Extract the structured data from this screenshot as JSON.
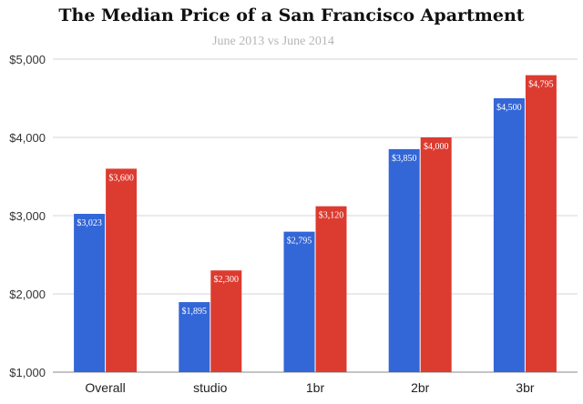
{
  "chart_data": {
    "type": "bar",
    "title": "The Median Price of a San Francisco Apartment",
    "subtitle": "June 2013 vs June 2014",
    "xlabel": "",
    "ylabel": "",
    "categories": [
      "Overall",
      "studio",
      "1br",
      "2br",
      "3br"
    ],
    "series": [
      {
        "color": "#3366d6",
        "values": [
          3023,
          1895,
          2795,
          3850,
          4500
        ],
        "labels": [
          "$3,023",
          "$1,895",
          "$2,795",
          "$3,850",
          "$4,500"
        ]
      },
      {
        "color": "#dc3b30",
        "values": [
          3600,
          2300,
          3120,
          4000,
          4795
        ],
        "labels": [
          "$3,600",
          "$2,300",
          "$3,120",
          "$4,000",
          "$4,795"
        ]
      }
    ],
    "ylim": [
      1000,
      5000
    ],
    "yticks": [
      1000,
      2000,
      3000,
      4000,
      5000
    ],
    "ytick_labels": [
      "$1,000",
      "$2,000",
      "$3,000",
      "$4,000",
      "$5,000"
    ],
    "grid": true,
    "legend": "none"
  }
}
